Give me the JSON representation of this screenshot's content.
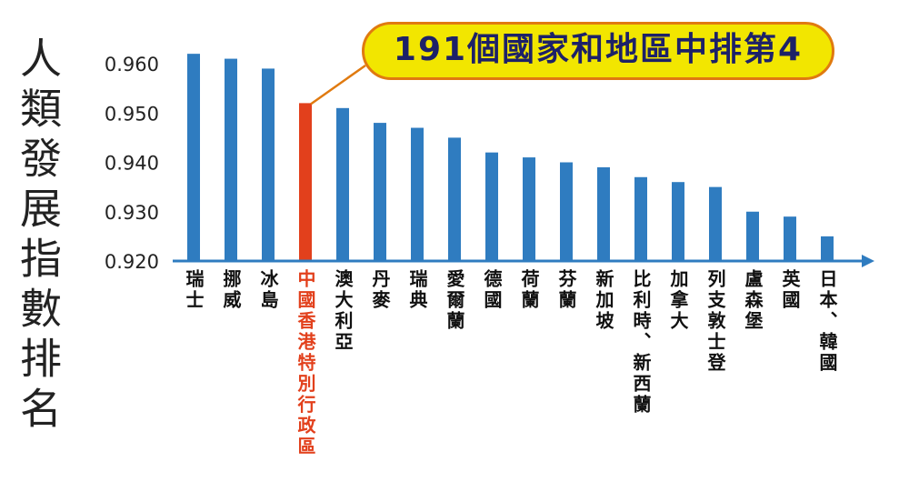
{
  "chart_data": {
    "type": "bar",
    "title": "",
    "ylabel": "人類發展指數排名",
    "xlabel": "",
    "ylim": [
      0.92,
      0.96
    ],
    "yticks": [
      "0.920",
      "0.930",
      "0.940",
      "0.950",
      "0.960"
    ],
    "categories": [
      "瑞士",
      "挪威",
      "冰島",
      "中國香港特別行政區",
      "澳大利亞",
      "丹麥",
      "瑞典",
      "愛爾蘭",
      "德國",
      "荷蘭",
      "芬蘭",
      "新加坡",
      "比利時、新西蘭",
      "加拿大",
      "列支敦士登",
      "盧森堡",
      "英國",
      "日本、韓國"
    ],
    "values": [
      0.962,
      0.961,
      0.959,
      0.952,
      0.951,
      0.948,
      0.947,
      0.945,
      0.942,
      0.941,
      0.94,
      0.939,
      0.937,
      0.936,
      0.935,
      0.93,
      0.929,
      0.925
    ],
    "highlight_index": 3,
    "annotation": "191個國家和地區中排第4",
    "colors": {
      "bar": "#2f7cc0",
      "highlight": "#e2401c",
      "axis": "#2f7cc0",
      "callout_fill": "#f2e600",
      "callout_border": "#e07a10",
      "callout_text": "#1d2168"
    }
  }
}
